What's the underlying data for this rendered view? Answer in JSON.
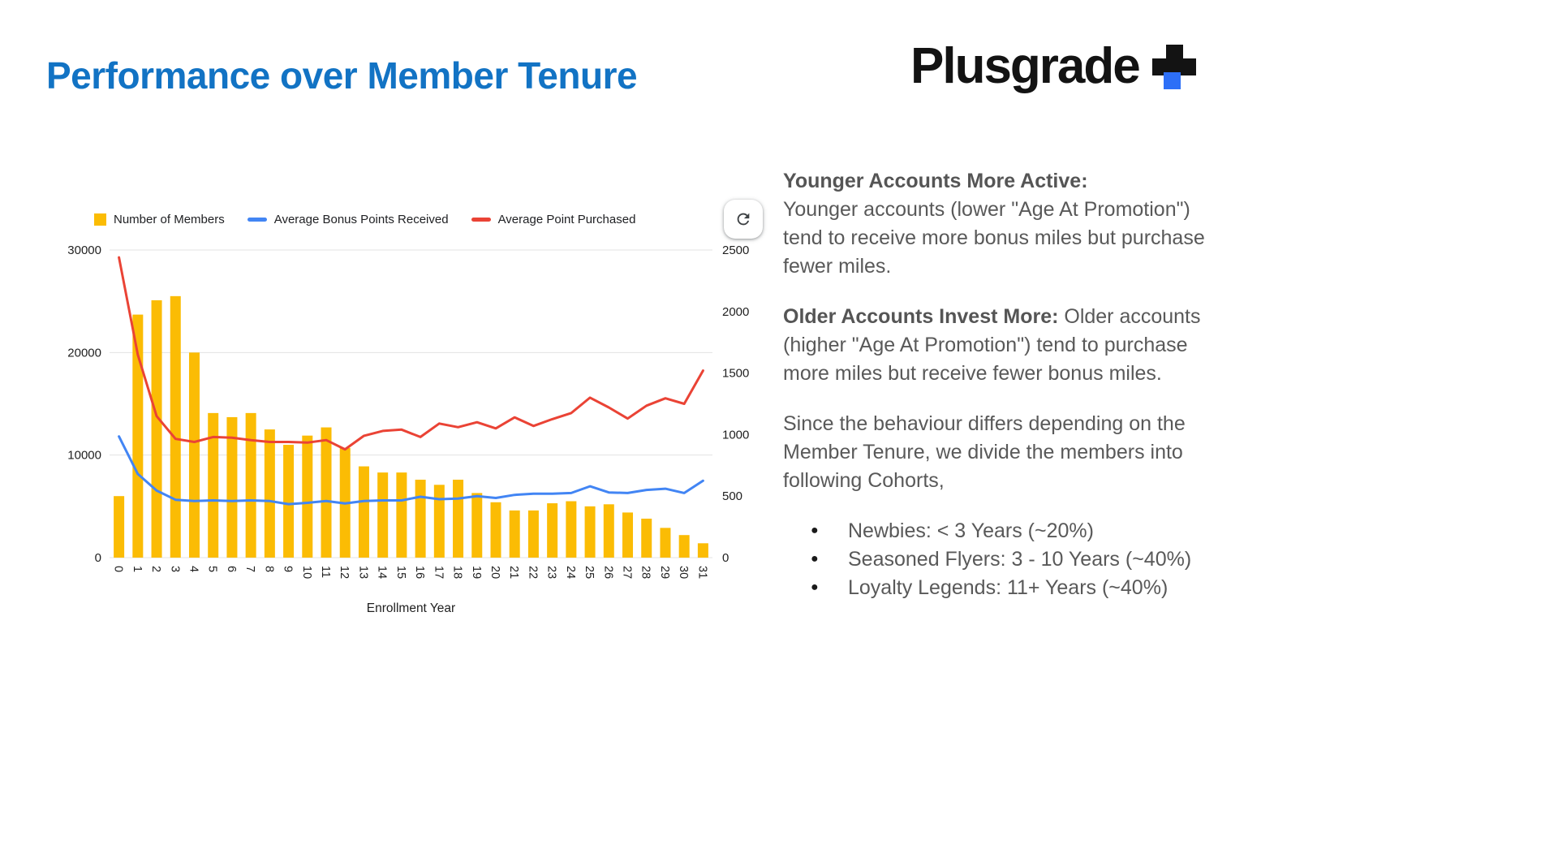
{
  "page": {
    "title": "Performance over Member Tenure",
    "logo_text": "Plusgrade",
    "title_color": "#1273c4",
    "logo_accent_color": "#2d6ff7"
  },
  "chart_data": {
    "type": "bar+line",
    "title": "",
    "xlabel": "Enrollment Year",
    "categories": [
      "0",
      "1",
      "2",
      "3",
      "4",
      "5",
      "6",
      "7",
      "8",
      "9",
      "10",
      "11",
      "12",
      "13",
      "14",
      "15",
      "16",
      "17",
      "18",
      "19",
      "20",
      "21",
      "22",
      "23",
      "24",
      "25",
      "26",
      "27",
      "28",
      "29",
      "30",
      "31"
    ],
    "left_axis": {
      "min": 0,
      "max": 30000,
      "ticks": [
        0,
        10000,
        20000,
        30000
      ]
    },
    "right_axis": {
      "min": 0,
      "max": 2500,
      "ticks": [
        0,
        500,
        1000,
        1500,
        2000,
        2500
      ]
    },
    "grid": "horizontal",
    "legend_position": "top",
    "series": [
      {
        "name": "Number of Members",
        "type": "bar",
        "axis": "left",
        "color": "#FBBC04",
        "values": [
          6000,
          23700,
          25100,
          25500,
          20000,
          14100,
          13700,
          14100,
          12500,
          11000,
          11900,
          12700,
          10700,
          8900,
          8300,
          8300,
          7600,
          7100,
          7600,
          6300,
          5400,
          4600,
          4600,
          5300,
          5500,
          5000,
          5200,
          4400,
          3800,
          2900,
          2200,
          1400
        ]
      },
      {
        "name": "Average Bonus Points Received",
        "type": "line",
        "axis": "right",
        "color": "#4285F4",
        "values": [
          985,
          680,
          545,
          470,
          460,
          465,
          460,
          465,
          460,
          435,
          445,
          460,
          440,
          460,
          465,
          465,
          495,
          475,
          480,
          500,
          485,
          510,
          520,
          520,
          525,
          580,
          530,
          525,
          550,
          560,
          525,
          625
        ]
      },
      {
        "name": "Average Point Purchased",
        "type": "line",
        "axis": "right",
        "color": "#EA4335",
        "values": [
          2440,
          1650,
          1150,
          965,
          940,
          980,
          975,
          955,
          940,
          940,
          935,
          955,
          880,
          990,
          1030,
          1040,
          980,
          1090,
          1060,
          1100,
          1050,
          1140,
          1070,
          1125,
          1175,
          1300,
          1220,
          1130,
          1235,
          1295,
          1250,
          1520
        ]
      }
    ]
  },
  "notes": [
    {
      "bold": "Younger Accounts More Active:",
      "text": "Younger accounts (lower \"Age At Promotion\") tend to receive more bonus miles but purchase fewer miles."
    },
    {
      "bold": "Older Accounts Invest More:",
      "text": " Older accounts (higher \"Age At Promotion\") tend to purchase more miles but receive fewer bonus miles."
    },
    {
      "bold": "",
      "text": "Since the behaviour differs depending on the Member Tenure, we divide the members into following Cohorts,"
    }
  ],
  "cohorts": [
    "Newbies: < 3 Years (~20%)",
    "Seasoned Flyers: 3 - 10 Years (~40%)",
    "Loyalty Legends: 11+ Years (~40%)"
  ]
}
